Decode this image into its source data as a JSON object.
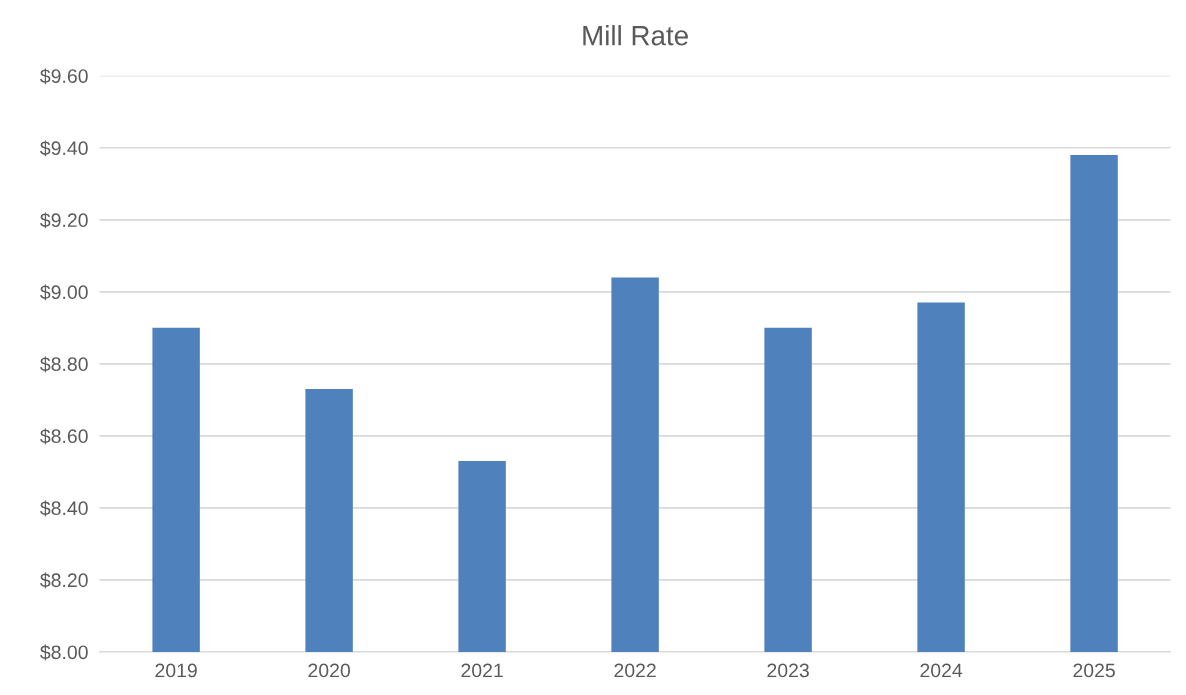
{
  "chart_data": {
    "type": "bar",
    "title": "Mill Rate",
    "categories": [
      "2019",
      "2020",
      "2021",
      "2022",
      "2023",
      "2024",
      "2025"
    ],
    "values": [
      8.9,
      8.73,
      8.53,
      9.04,
      8.9,
      8.97,
      9.38
    ],
    "color": "#4f81bd",
    "ylim": [
      8.0,
      9.6
    ],
    "yticks": [
      {
        "value": 8.0,
        "label": "$8.00"
      },
      {
        "value": 8.2,
        "label": "$8.20"
      },
      {
        "value": 8.4,
        "label": "$8.40"
      },
      {
        "value": 8.6,
        "label": "$8.60"
      },
      {
        "value": 8.8,
        "label": "$8.80"
      },
      {
        "value": 9.0,
        "label": "$9.00"
      },
      {
        "value": 9.2,
        "label": "$9.20"
      },
      {
        "value": 9.4,
        "label": "$9.40"
      },
      {
        "value": 9.6,
        "label": "$9.60"
      }
    ],
    "grid": "y"
  }
}
